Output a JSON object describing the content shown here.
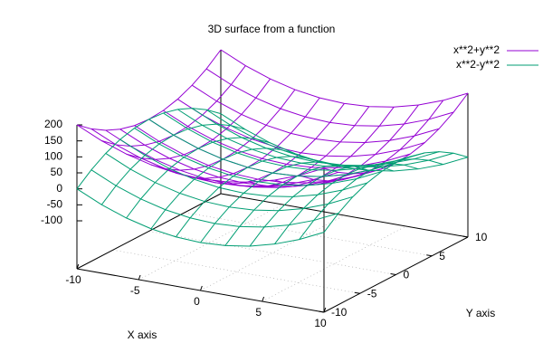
{
  "chart_data": {
    "type": "surface3d",
    "title": "3D surface from a function",
    "x_label": "X axis",
    "y_label": "Y axis",
    "x": [
      -10,
      -8,
      -6,
      -4,
      -2,
      0,
      2,
      4,
      6,
      8,
      10
    ],
    "y": [
      -10,
      -8,
      -6,
      -4,
      -2,
      0,
      2,
      4,
      6,
      8,
      10
    ],
    "xlim": [
      -10,
      10
    ],
    "ylim": [
      -10,
      10
    ],
    "zlim": [
      -100,
      200
    ],
    "xticks": [
      -10,
      -5,
      0,
      5,
      10
    ],
    "yticks": [
      -10,
      -5,
      0,
      5,
      10
    ],
    "zticks": [
      -100,
      -50,
      0,
      50,
      100,
      150,
      200
    ],
    "grid": true,
    "legend": "top-right",
    "series": [
      {
        "name": "x**2+y**2",
        "color": "#9400d3",
        "values": [
          [
            200,
            164,
            136,
            116,
            104,
            100,
            104,
            116,
            136,
            164,
            200
          ],
          [
            164,
            128,
            100,
            80,
            68,
            64,
            68,
            80,
            100,
            128,
            164
          ],
          [
            136,
            100,
            72,
            52,
            40,
            36,
            40,
            52,
            72,
            100,
            136
          ],
          [
            116,
            80,
            52,
            32,
            20,
            16,
            20,
            32,
            52,
            80,
            116
          ],
          [
            104,
            68,
            40,
            20,
            8,
            4,
            8,
            20,
            40,
            68,
            104
          ],
          [
            100,
            64,
            36,
            16,
            4,
            0,
            4,
            16,
            36,
            64,
            100
          ],
          [
            104,
            68,
            40,
            20,
            8,
            4,
            8,
            20,
            40,
            68,
            104
          ],
          [
            116,
            80,
            52,
            32,
            20,
            16,
            20,
            32,
            52,
            80,
            116
          ],
          [
            136,
            100,
            72,
            52,
            40,
            36,
            40,
            52,
            72,
            100,
            136
          ],
          [
            164,
            128,
            100,
            80,
            68,
            64,
            68,
            80,
            100,
            128,
            164
          ],
          [
            200,
            164,
            136,
            116,
            104,
            100,
            104,
            116,
            136,
            164,
            200
          ]
        ]
      },
      {
        "name": "x**2-y**2",
        "color": "#009e73",
        "values": [
          [
            0,
            -36,
            -64,
            -84,
            -96,
            -100,
            -96,
            -84,
            -64,
            -36,
            0
          ],
          [
            36,
            0,
            -28,
            -48,
            -60,
            -64,
            -60,
            -48,
            -28,
            0,
            36
          ],
          [
            64,
            28,
            0,
            -20,
            -32,
            -36,
            -32,
            -20,
            0,
            28,
            64
          ],
          [
            84,
            48,
            20,
            0,
            -12,
            -16,
            -12,
            0,
            20,
            48,
            84
          ],
          [
            96,
            60,
            32,
            12,
            0,
            -4,
            0,
            12,
            32,
            60,
            96
          ],
          [
            100,
            64,
            36,
            16,
            4,
            0,
            4,
            16,
            36,
            64,
            100
          ],
          [
            96,
            60,
            32,
            12,
            0,
            -4,
            0,
            12,
            32,
            60,
            96
          ],
          [
            84,
            48,
            20,
            0,
            -12,
            -16,
            -12,
            0,
            20,
            48,
            84
          ],
          [
            64,
            28,
            0,
            -20,
            -32,
            -36,
            -32,
            -20,
            0,
            28,
            64
          ],
          [
            36,
            0,
            -28,
            -48,
            -60,
            -64,
            -60,
            -48,
            -28,
            0,
            36
          ],
          [
            0,
            -36,
            -64,
            -84,
            -96,
            -100,
            -96,
            -84,
            -64,
            -36,
            0
          ]
        ]
      }
    ]
  }
}
